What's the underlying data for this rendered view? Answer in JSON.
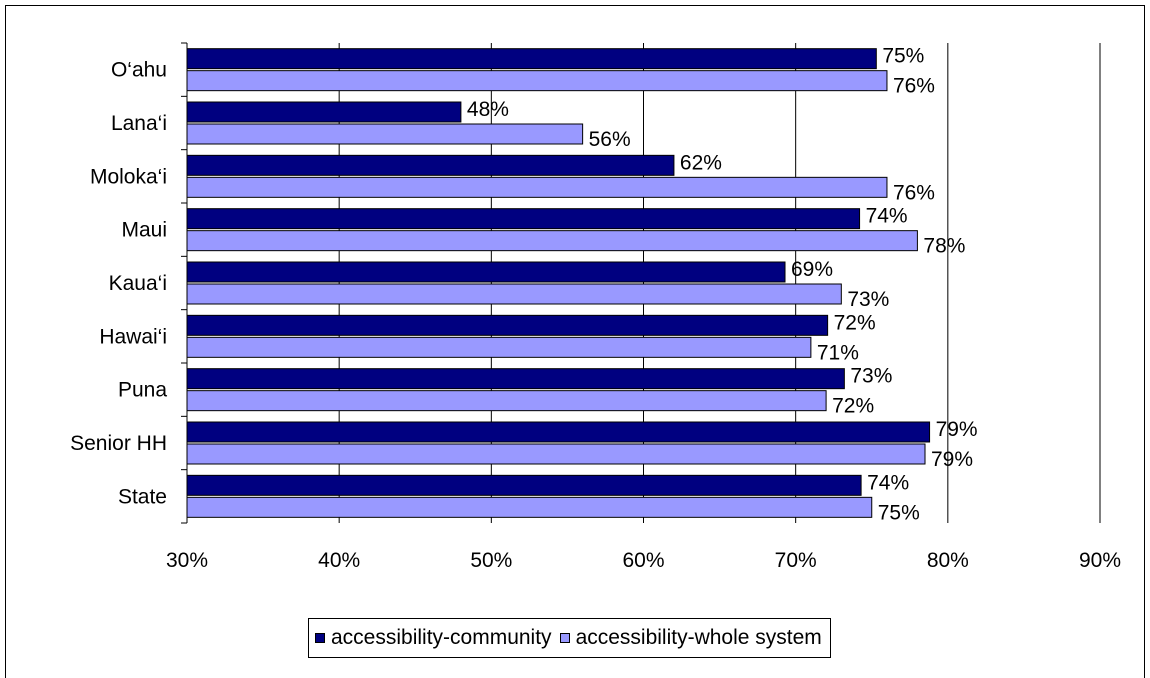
{
  "chart_data": {
    "type": "bar",
    "orientation": "horizontal",
    "title": "",
    "xlabel": "",
    "ylabel": "",
    "categories": [
      "O‘ahu",
      "Lana‘i",
      "Moloka‘i",
      "Maui",
      "Kaua‘i",
      "Hawai‘i",
      "Puna",
      "Senior HH",
      "State"
    ],
    "series": [
      {
        "name": "accessibility-community",
        "color": "#000080",
        "values": [
          75.3,
          48,
          62,
          74.2,
          69.3,
          72.1,
          73.2,
          78.8,
          74.3
        ],
        "labels": [
          "75%",
          "48%",
          "62%",
          "74%",
          "69%",
          "72%",
          "73%",
          "79%",
          "74%"
        ]
      },
      {
        "name": "accessibility-whole system",
        "color": "#9999ff",
        "values": [
          76,
          56,
          76,
          78,
          73,
          71,
          72,
          78.5,
          75
        ],
        "labels": [
          "76%",
          "56%",
          "76%",
          "78%",
          "73%",
          "71%",
          "72%",
          "79%",
          "75%"
        ]
      }
    ],
    "xlim": [
      30,
      90
    ],
    "xticks": [
      "30%",
      "40%",
      "50%",
      "60%",
      "70%",
      "80%",
      "90%"
    ],
    "gridlines": "vertical",
    "legend_position": "bottom"
  }
}
